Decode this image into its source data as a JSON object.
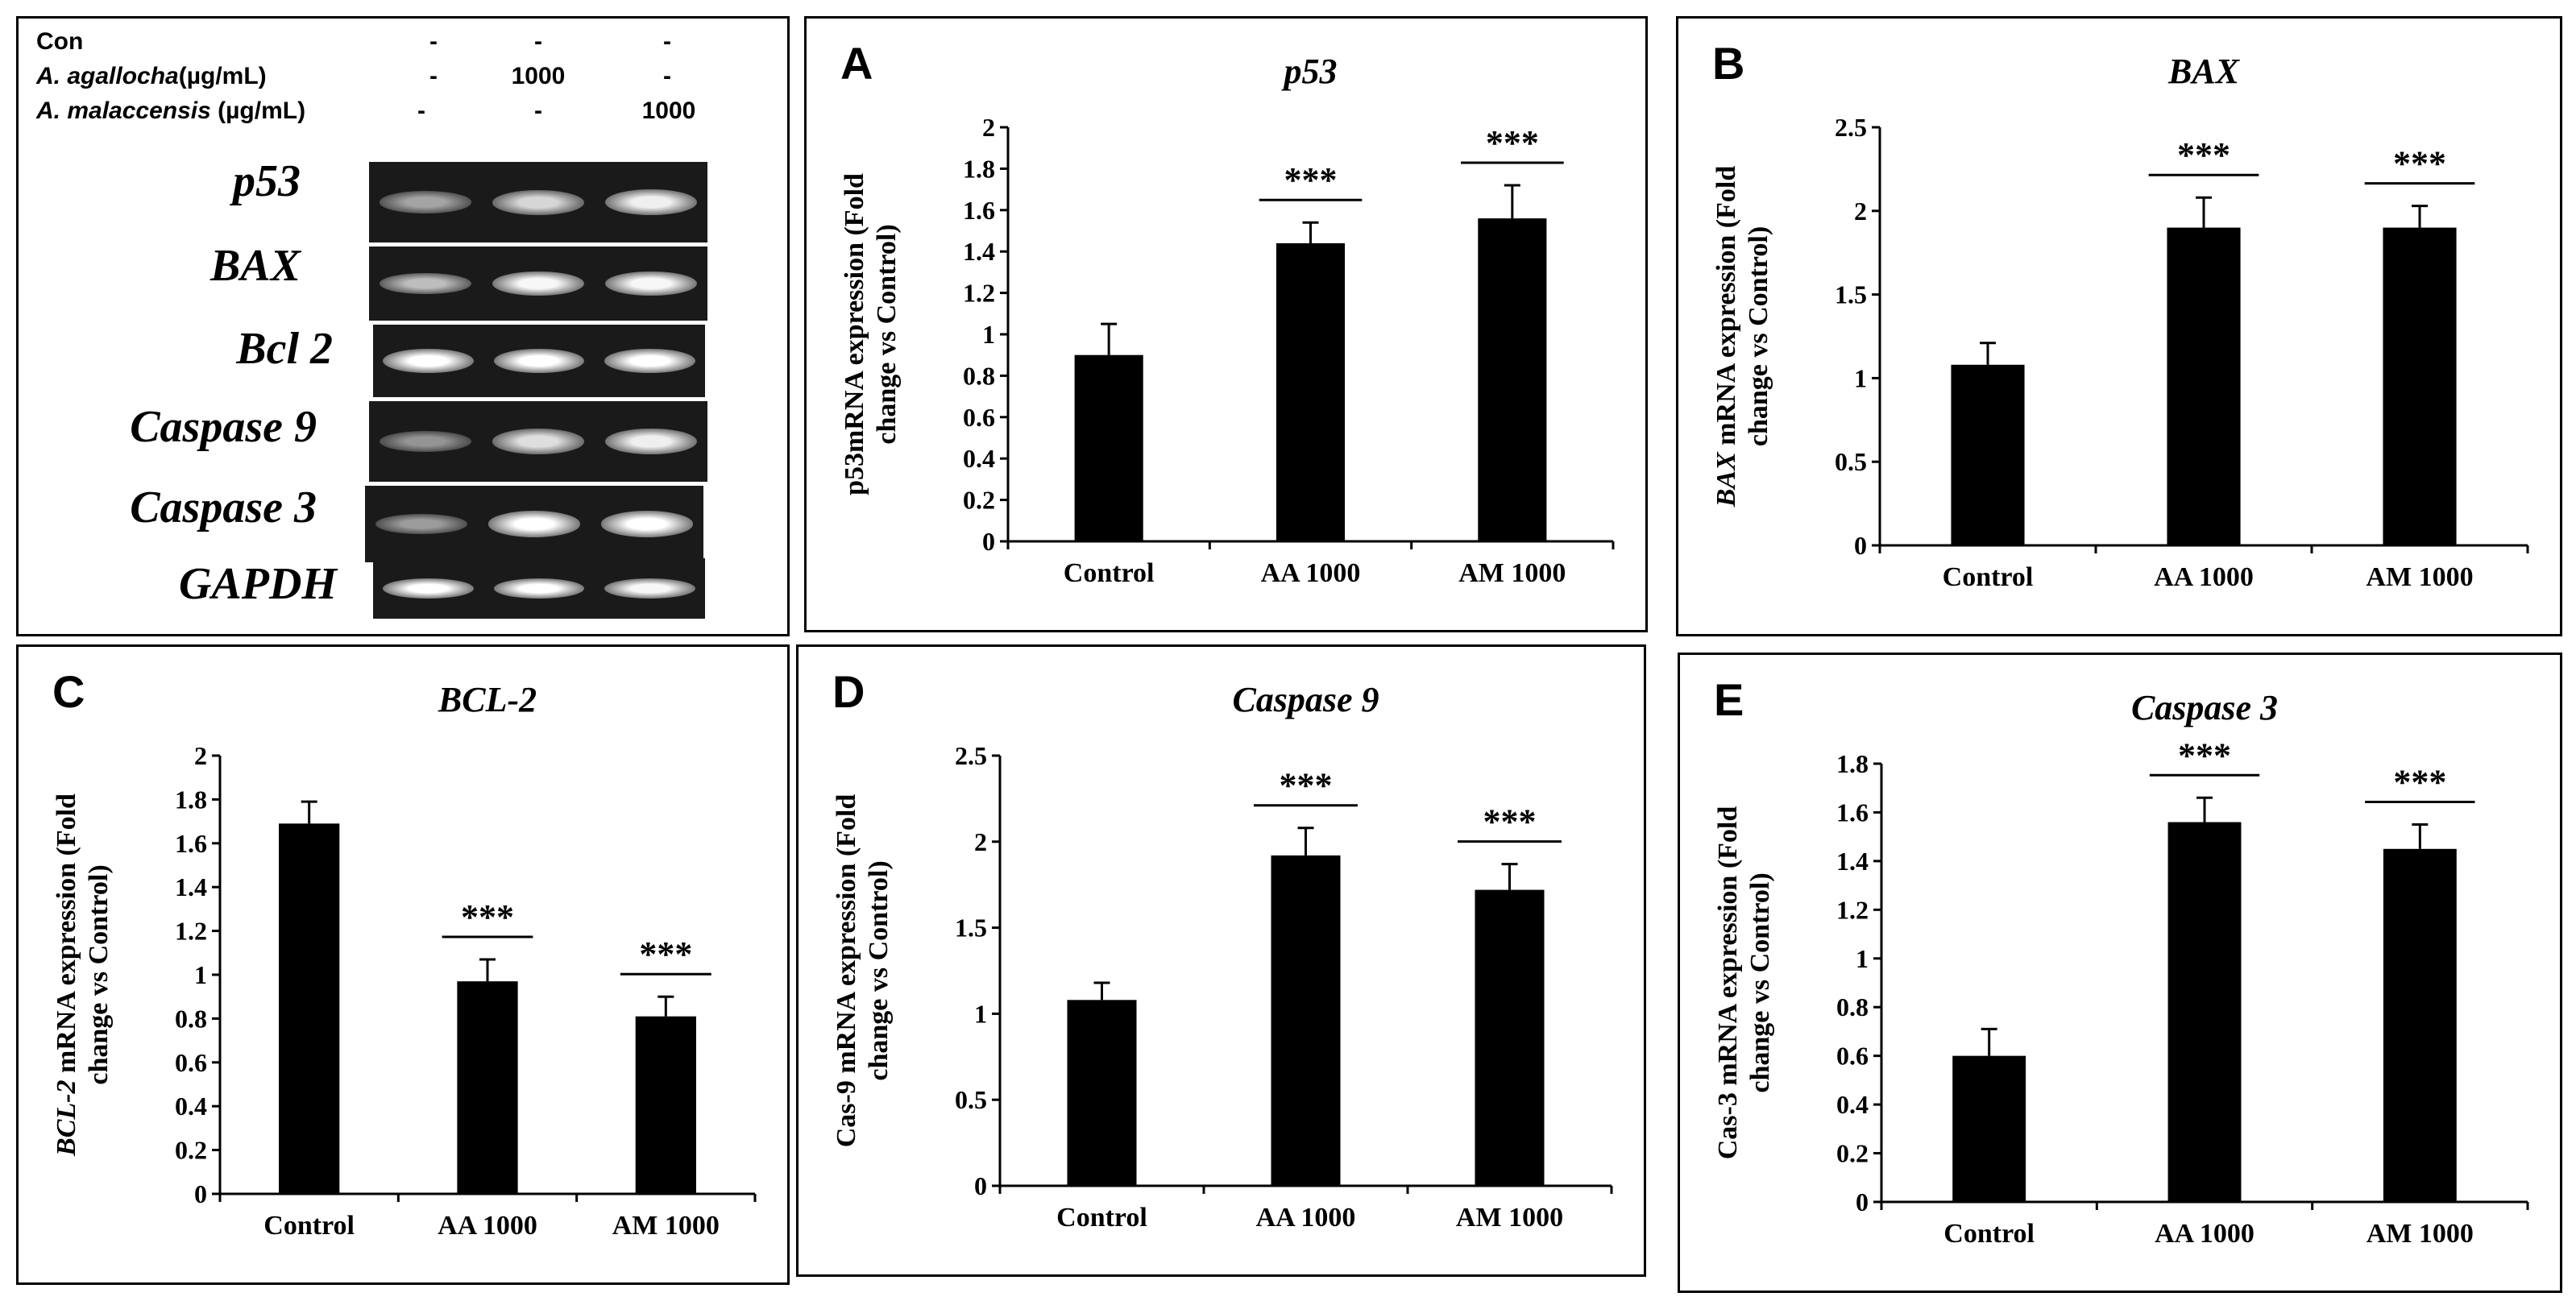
{
  "gel": {
    "header_rows": [
      {
        "label": "Con",
        "label_italic": "",
        "label_suffix": "",
        "lanes": [
          "-",
          "-",
          "-"
        ]
      },
      {
        "label": "",
        "label_italic": "A. agallocha",
        "label_suffix": "(µg/mL)",
        "lanes": [
          "-",
          "1000",
          "-"
        ]
      },
      {
        "label": "",
        "label_italic": "A. malaccensis",
        "label_suffix": " (µg/mL)",
        "lanes": [
          "-",
          "-",
          "1000"
        ]
      }
    ],
    "genes": [
      "p53",
      "BAX",
      "Bcl 2",
      "Caspase 9",
      "Caspase 3",
      "GAPDH"
    ],
    "band_intensity": [
      [
        0.45,
        0.75,
        0.9
      ],
      [
        0.6,
        0.95,
        0.95
      ],
      [
        1.0,
        1.0,
        1.0
      ],
      [
        0.35,
        0.8,
        0.9
      ],
      [
        0.4,
        1.0,
        1.0
      ],
      [
        1.0,
        1.0,
        0.95
      ]
    ]
  },
  "chart_data": [
    {
      "type": "bar",
      "panel_letter": "A",
      "title": "p53",
      "ylabel_italic": "",
      "ylabel_line1": "p53mRNA expression (Fold",
      "ylabel_line2": "change vs Control)",
      "categories": [
        "Control",
        "AA 1000",
        "AM 1000"
      ],
      "values": [
        0.9,
        1.44,
        1.56
      ],
      "errors": [
        0.15,
        0.1,
        0.16
      ],
      "significance": [
        "",
        "***",
        "***"
      ],
      "ylim": [
        0,
        2
      ],
      "ticks": [
        "0",
        "0.2",
        "0.4",
        "0.6",
        "0.8",
        "1",
        "1.2",
        "1.4",
        "1.6",
        "1.8",
        "2"
      ],
      "tick_values": [
        0,
        0.2,
        0.4,
        0.6,
        0.8,
        1,
        1.2,
        1.4,
        1.6,
        1.8,
        2
      ]
    },
    {
      "type": "bar",
      "panel_letter": "B",
      "title": "BAX",
      "ylabel_italic": "BAX",
      "ylabel_line1": " mRNA expression (Fold",
      "ylabel_line2": "change vs Control)",
      "categories": [
        "Control",
        "AA 1000",
        "AM 1000"
      ],
      "values": [
        1.08,
        1.9,
        1.9
      ],
      "errors": [
        0.13,
        0.18,
        0.13
      ],
      "significance": [
        "",
        "***",
        "***"
      ],
      "ylim": [
        0,
        2.5
      ],
      "ticks": [
        "0",
        "0.5",
        "1",
        "1.5",
        "2",
        "2.5"
      ],
      "tick_values": [
        0,
        0.5,
        1,
        1.5,
        2,
        2.5
      ]
    },
    {
      "type": "bar",
      "panel_letter": "C",
      "title": "BCL-2",
      "ylabel_italic": "BCL-2",
      "ylabel_line1": "  mRNA expression (Fold",
      "ylabel_line2": "change vs Control)",
      "categories": [
        "Control",
        "AA 1000",
        "AM 1000"
      ],
      "values": [
        1.69,
        0.97,
        0.81
      ],
      "errors": [
        0.1,
        0.1,
        0.09
      ],
      "significance": [
        "",
        "***",
        "***"
      ],
      "ylim": [
        0,
        2
      ],
      "ticks": [
        "0",
        "0.2",
        "0.4",
        "0.6",
        "0.8",
        "1",
        "1.2",
        "1.4",
        "1.6",
        "1.8",
        "2"
      ],
      "tick_values": [
        0,
        0.2,
        0.4,
        0.6,
        0.8,
        1,
        1.2,
        1.4,
        1.6,
        1.8,
        2
      ]
    },
    {
      "type": "bar",
      "panel_letter": "D",
      "title": "Caspase 9",
      "ylabel_italic": "",
      "ylabel_line1": "Cas-9 mRNA expression (Fold",
      "ylabel_line2": "change vs Control)",
      "categories": [
        "Control",
        "AA 1000",
        "AM 1000"
      ],
      "values": [
        1.08,
        1.92,
        1.72
      ],
      "errors": [
        0.1,
        0.16,
        0.15
      ],
      "significance": [
        "",
        "***",
        "***"
      ],
      "ylim": [
        0,
        2.5
      ],
      "ticks": [
        "0",
        "0.5",
        "1",
        "1.5",
        "2",
        "2.5"
      ],
      "tick_values": [
        0,
        0.5,
        1,
        1.5,
        2,
        2.5
      ]
    },
    {
      "type": "bar",
      "panel_letter": "E",
      "title": "Caspase 3",
      "ylabel_italic": "",
      "ylabel_line1": "Cas-3  mRNA expression (Fold",
      "ylabel_line2": "change vs Control)",
      "categories": [
        "Control",
        "AA 1000",
        "AM 1000"
      ],
      "values": [
        0.6,
        1.56,
        1.45
      ],
      "errors": [
        0.11,
        0.1,
        0.1
      ],
      "significance": [
        "",
        "***",
        "***"
      ],
      "ylim": [
        0,
        1.8
      ],
      "ticks": [
        "0",
        "0.2",
        "0.4",
        "0.6",
        "0.8",
        "1",
        "1.2",
        "1.4",
        "1.6",
        "1.8"
      ],
      "tick_values": [
        0,
        0.2,
        0.4,
        0.6,
        0.8,
        1,
        1.2,
        1.4,
        1.6,
        1.8
      ]
    }
  ]
}
